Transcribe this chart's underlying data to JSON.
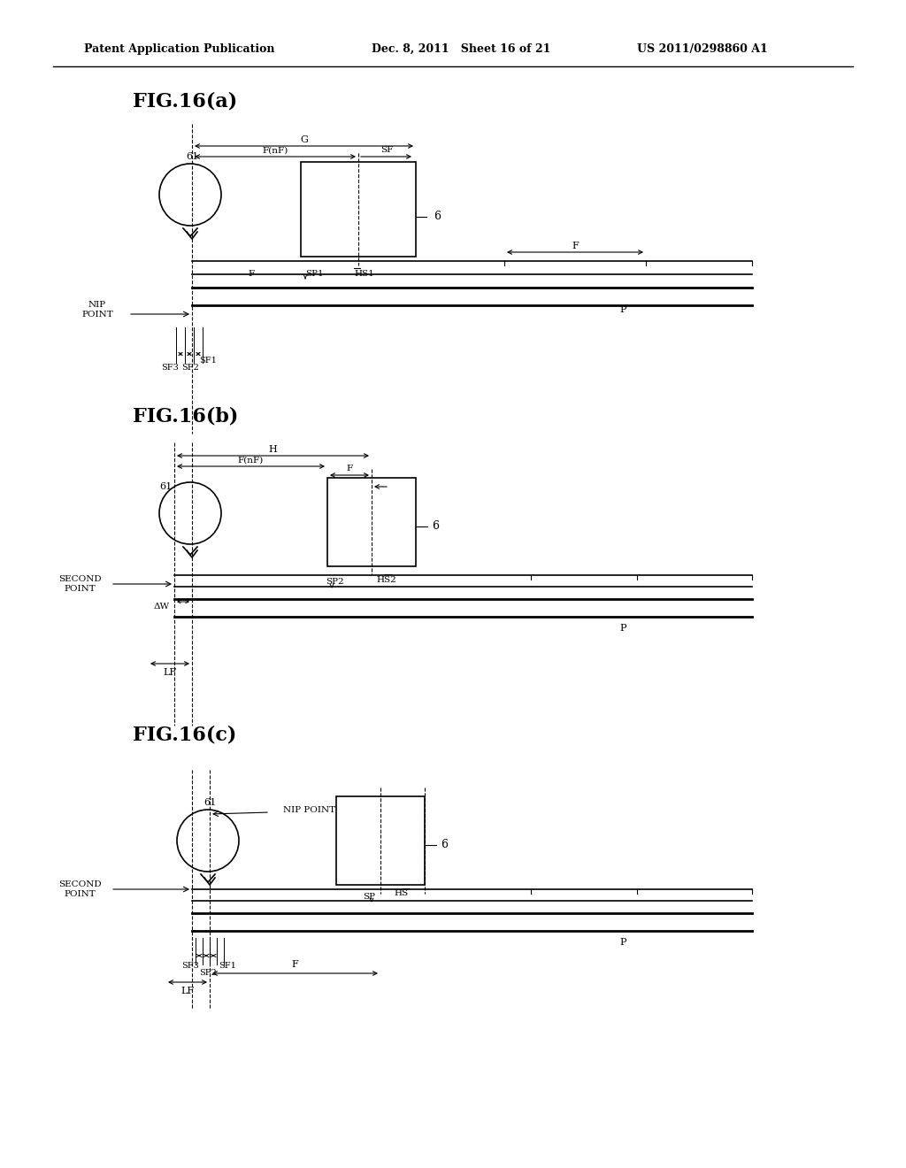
{
  "header_left": "Patent Application Publication",
  "header_mid": "Dec. 8, 2011   Sheet 16 of 21",
  "header_right": "US 2011/0298860 A1",
  "bg_color": "#ffffff",
  "fig_labels": [
    "FIG.16(a)",
    "FIG.16(b)",
    "FIG.16(c)"
  ],
  "panels": [
    {
      "id": "a",
      "title": "FIG.16(a)",
      "nip_label": "NIP\nPOINT",
      "circle_label": "61",
      "rect_label": "6",
      "dimension_labels": [
        "G",
        "F(nF)",
        "SF",
        "F",
        "SP1",
        "HS1",
        "SF3",
        "SF1",
        "SF2",
        "F",
        "P"
      ]
    },
    {
      "id": "b",
      "title": "FIG.16(b)",
      "nip_label": "SECOND\nPOINT",
      "circle_label": "61",
      "rect_label": "6",
      "dimension_labels": [
        "H",
        "F(nF)",
        "F",
        "SP2",
        "HS2",
        "LF",
        "P",
        "ΔW"
      ]
    },
    {
      "id": "c",
      "title": "FIG.16(c)",
      "nip_label": "SECOND\nPOINT",
      "circle_label": "61",
      "rect_label": "6",
      "dimension_labels": [
        "NIP POINT",
        "SP",
        "HS",
        "LF",
        "F",
        "SF3",
        "SF1",
        "SF2",
        "P"
      ]
    }
  ]
}
